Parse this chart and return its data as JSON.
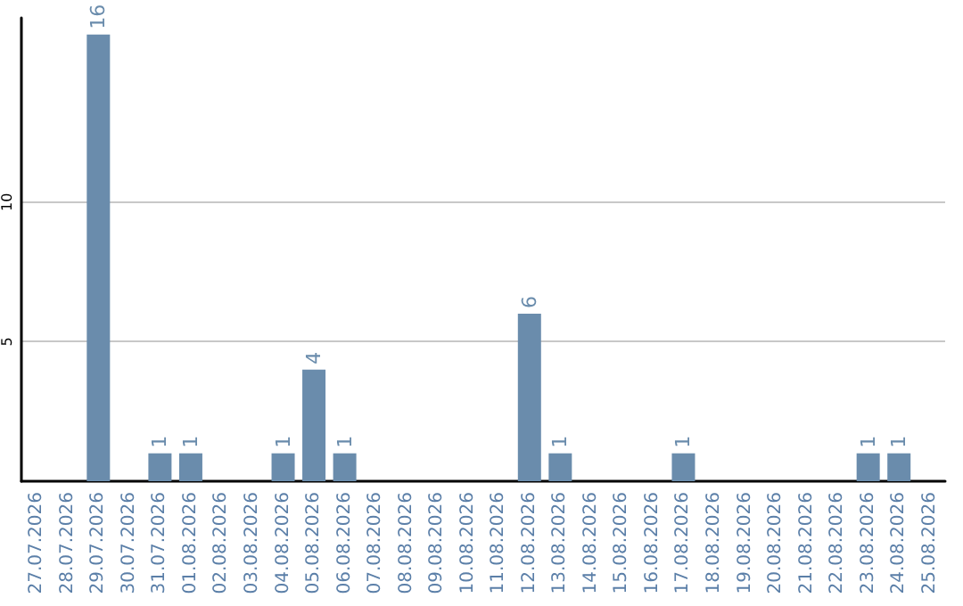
{
  "chart_data": {
    "type": "bar",
    "categories": [
      "27.07.2026",
      "28.07.2026",
      "29.07.2026",
      "30.07.2026",
      "31.07.2026",
      "01.08.2026",
      "02.08.2026",
      "03.08.2026",
      "04.08.2026",
      "05.08.2026",
      "06.08.2026",
      "07.08.2026",
      "08.08.2026",
      "09.08.2026",
      "10.08.2026",
      "11.08.2026",
      "12.08.2026",
      "13.08.2026",
      "14.08.2026",
      "15.08.2026",
      "16.08.2026",
      "17.08.2026",
      "18.08.2026",
      "19.08.2026",
      "20.08.2026",
      "21.08.2026",
      "22.08.2026",
      "23.08.2026",
      "24.08.2026",
      "25.08.2026"
    ],
    "values": [
      0,
      0,
      16,
      0,
      1,
      1,
      0,
      0,
      1,
      4,
      1,
      0,
      0,
      0,
      0,
      0,
      6,
      1,
      0,
      0,
      0,
      1,
      0,
      0,
      0,
      0,
      0,
      1,
      1,
      0
    ],
    "value_labels": [
      null,
      null,
      "16",
      null,
      "1",
      "1",
      null,
      null,
      "1",
      "4",
      "1",
      null,
      null,
      null,
      null,
      null,
      "6",
      "1",
      null,
      null,
      null,
      "1",
      null,
      null,
      null,
      null,
      null,
      "1",
      "1",
      null
    ],
    "color": "#6a8cac",
    "ylim": [
      0,
      16.6
    ],
    "yticks": [
      5,
      10
    ],
    "grid": "y"
  }
}
